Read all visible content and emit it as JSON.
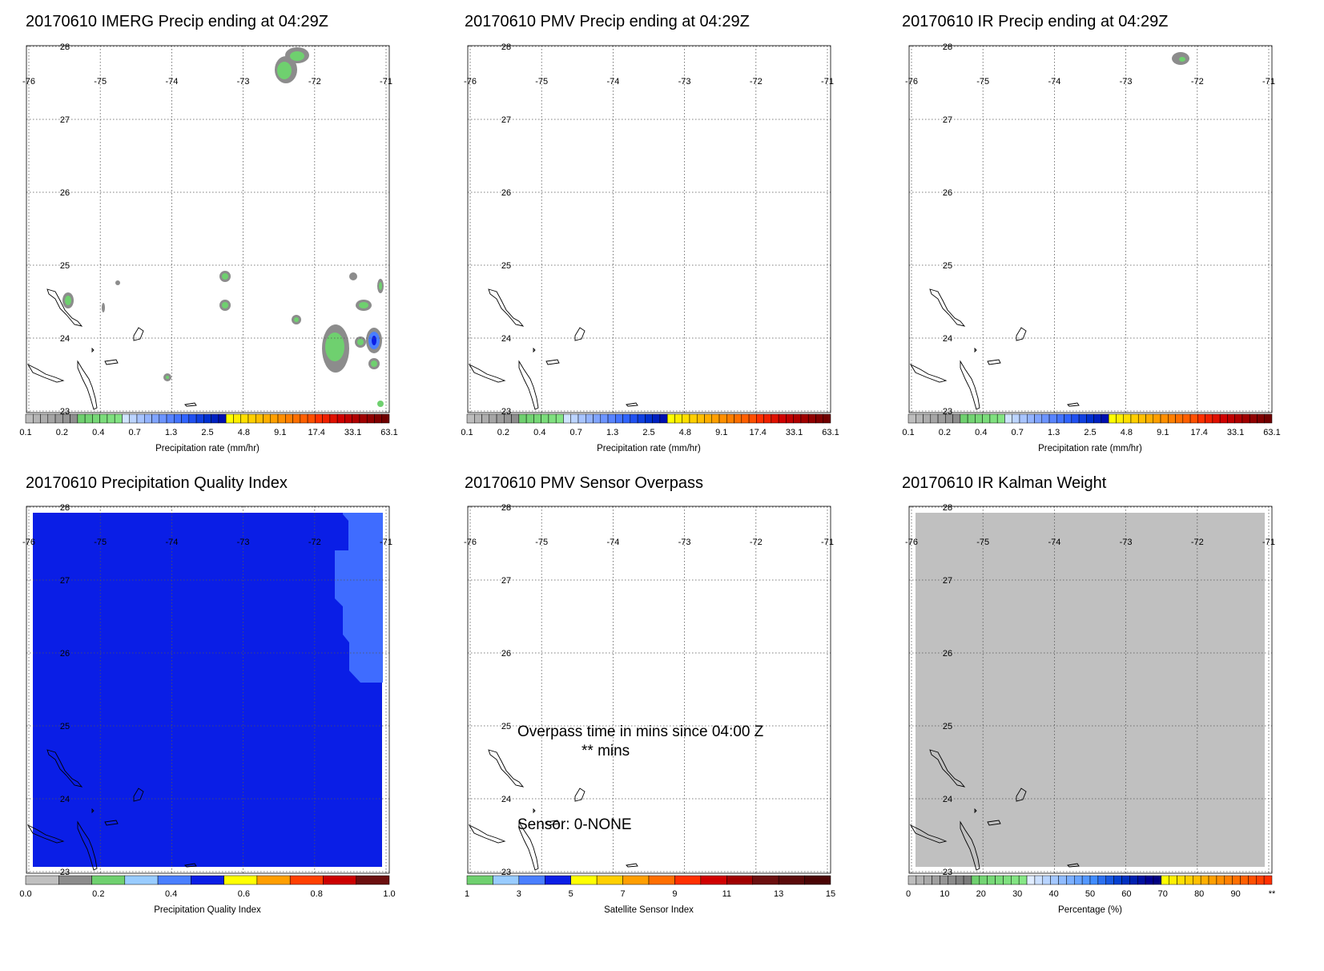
{
  "colors": {
    "gray_dark": "#8c8c8c",
    "gray_light": "#c0c0c0",
    "green": "#6fd06f",
    "blue_pqi": "#0a1ee6",
    "blue_light_pqi": "#3f6cff"
  },
  "panels": [
    {
      "id": "p1",
      "title": "20170610 IMERG Precip ending at 04:29Z",
      "map": "precip_imerg",
      "colorbar": "cb_precip"
    },
    {
      "id": "p2",
      "title": "20170610 PMV Precip ending at 04:29Z",
      "map": "empty",
      "colorbar": "cb_precip"
    },
    {
      "id": "p3",
      "title": "20170610 IR Precip ending at 04:29Z",
      "map": "precip_ir",
      "colorbar": "cb_precip"
    },
    {
      "id": "p4",
      "title": "20170610 Precipitation Quality Index",
      "map": "pqi",
      "colorbar": "cb_pqi"
    },
    {
      "id": "p5",
      "title": "20170610 PMV Sensor Overpass",
      "map": "overpass",
      "colorbar": "cb_sensor",
      "annotations": {
        "overpass_line1": "Overpass time in mins since 04:00 Z",
        "overpass_line2": "** mins",
        "sensor_line": "Sensor:   0-NONE"
      }
    },
    {
      "id": "p6",
      "title": "20170610 IR Kalman Weight",
      "map": "kalman",
      "colorbar": "cb_percent"
    }
  ],
  "chart_data": [
    {
      "type": "heatmap",
      "panel": "p1",
      "title": "20170610 IMERG Precip ending at 04:29Z",
      "x_ticks": [
        "-76",
        "-75",
        "-74",
        "-73",
        "-72",
        "-71"
      ],
      "y_ticks": [
        "28",
        "27",
        "26",
        "25",
        "24",
        "23"
      ],
      "xlim": [
        -76,
        -71
      ],
      "ylim": [
        23,
        28
      ],
      "grid": true
    },
    {
      "type": "heatmap",
      "panel": "p2",
      "title": "20170610 PMV Precip ending at 04:29Z",
      "x_ticks": [
        "-76",
        "-75",
        "-74",
        "-73",
        "-72",
        "-71"
      ],
      "y_ticks": [
        "28",
        "27",
        "26",
        "25",
        "24",
        "23"
      ],
      "xlim": [
        -76,
        -71
      ],
      "ylim": [
        23,
        28
      ],
      "grid": true
    },
    {
      "type": "heatmap",
      "panel": "p3",
      "title": "20170610 IR Precip ending at 04:29Z",
      "x_ticks": [
        "-76",
        "-75",
        "-74",
        "-73",
        "-72",
        "-71"
      ],
      "y_ticks": [
        "28",
        "27",
        "26",
        "25",
        "24",
        "23"
      ],
      "xlim": [
        -76,
        -71
      ],
      "ylim": [
        23,
        28
      ],
      "grid": true
    },
    {
      "type": "heatmap",
      "panel": "p4",
      "title": "20170610 Precipitation Quality Index",
      "x_ticks": [
        "-76",
        "-75",
        "-74",
        "-73",
        "-72",
        "-71"
      ],
      "y_ticks": [
        "28",
        "27",
        "26",
        "25",
        "24",
        "23"
      ],
      "xlim": [
        -76,
        -71
      ],
      "ylim": [
        23,
        28
      ],
      "grid": true
    },
    {
      "type": "heatmap",
      "panel": "p5",
      "title": "20170610 PMV Sensor Overpass",
      "x_ticks": [
        "-76",
        "-75",
        "-74",
        "-73",
        "-72",
        "-71"
      ],
      "y_ticks": [
        "28",
        "27",
        "26",
        "25",
        "24",
        "23"
      ],
      "xlim": [
        -76,
        -71
      ],
      "ylim": [
        23,
        28
      ],
      "grid": true
    },
    {
      "type": "heatmap",
      "panel": "p6",
      "title": "20170610 IR Kalman Weight",
      "x_ticks": [
        "-76",
        "-75",
        "-74",
        "-73",
        "-72",
        "-71"
      ],
      "y_ticks": [
        "28",
        "27",
        "26",
        "25",
        "24",
        "23"
      ],
      "xlim": [
        -76,
        -71
      ],
      "ylim": [
        23,
        28
      ],
      "grid": true
    }
  ],
  "colorbars": {
    "cb_precip": {
      "title": "Precipitation rate (mm/hr)",
      "labels": [
        "0.1",
        "0.2",
        "0.4",
        "0.7",
        "1.3",
        "2.5",
        "4.8",
        "9.1",
        "17.4",
        "33.1",
        "63.1"
      ],
      "colors": [
        "#bdbdbd",
        "#b5b5b5",
        "#adadad",
        "#a5a5a5",
        "#9d9d9d",
        "#959595",
        "#8d8d8d",
        "#6fd06f",
        "#73d473",
        "#77d877",
        "#7bdc7b",
        "#7fe07f",
        "#83e483",
        "#d0e4ff",
        "#bcd4ff",
        "#a8c4ff",
        "#94b4ff",
        "#80a4ff",
        "#6c94ff",
        "#5884ff",
        "#4474ff",
        "#3064ff",
        "#2050f0",
        "#1040e0",
        "#0030d0",
        "#0020c0",
        "#0010b0",
        "#ffff00",
        "#ffef00",
        "#ffdf00",
        "#ffcf00",
        "#ffbf00",
        "#ffaf00",
        "#ff9f00",
        "#ff8f00",
        "#ff7f00",
        "#ff6f00",
        "#ff5f00",
        "#ff4f00",
        "#ff3000",
        "#ef2000",
        "#df1000",
        "#cf0000",
        "#bf0000",
        "#af0000",
        "#9f0000",
        "#8f0000",
        "#7f0000",
        "#6f0000"
      ]
    },
    "cb_pqi": {
      "title": "Precipitation Quality Index",
      "labels": [
        "0.0",
        "0.2",
        "0.4",
        "0.6",
        "0.8",
        "1.0"
      ],
      "colors": [
        "#c0c0c0",
        "#8c8c8c",
        "#6fd06f",
        "#99ccff",
        "#4a7fff",
        "#0a1ee6",
        "#ffff00",
        "#ff9f00",
        "#ff4000",
        "#cc0000",
        "#6b0f0f"
      ]
    },
    "cb_sensor": {
      "title": "Satellite Sensor Index",
      "labels": [
        "1",
        "3",
        "5",
        "7",
        "9",
        "11",
        "13",
        "15"
      ],
      "colors": [
        "#6fd06f",
        "#99ccff",
        "#4a7fff",
        "#0a1ee6",
        "#ffff00",
        "#ffd000",
        "#ff9f00",
        "#ff6f00",
        "#ff3000",
        "#d00000",
        "#a00000",
        "#6b0f0f",
        "#5a0a0a",
        "#4a0505"
      ]
    },
    "cb_percent": {
      "title": "Percentage (%)",
      "labels": [
        "0",
        "10",
        "20",
        "30",
        "40",
        "50",
        "60",
        "70",
        "80",
        "90",
        "**"
      ],
      "colors": [
        "#bdbdbd",
        "#b3b3b3",
        "#a9a9a9",
        "#9f9f9f",
        "#959595",
        "#8b8b8b",
        "#818181",
        "#7a7a7a",
        "#6fd06f",
        "#73d473",
        "#77d877",
        "#7bdc7b",
        "#7fe07f",
        "#83e483",
        "#87e887",
        "#e0ecff",
        "#cce0ff",
        "#b8d4ff",
        "#a4c8ff",
        "#90bcff",
        "#7cb0ff",
        "#68a4ff",
        "#5498ff",
        "#408cff",
        "#2c70f0",
        "#1858e0",
        "#0440d0",
        "#0030c0",
        "#0020b0",
        "#0010a0",
        "#000090",
        "#000080",
        "#ffff00",
        "#fff000",
        "#ffe000",
        "#ffd000",
        "#ffc000",
        "#ffb000",
        "#ffa000",
        "#ff9000",
        "#ff8000",
        "#ff7000",
        "#ff6000",
        "#ff5000",
        "#ff4000",
        "#ff3000"
      ]
    }
  }
}
